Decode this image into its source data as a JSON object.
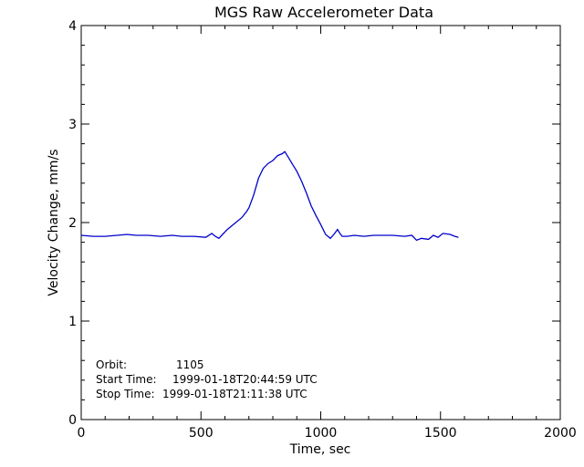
{
  "chart_data": {
    "type": "line",
    "title": "MGS Raw Accelerometer Data",
    "xlabel": "Time, sec",
    "ylabel": "Velocity Change, mm/s",
    "xlim": [
      0,
      2000
    ],
    "ylim": [
      0,
      4
    ],
    "x_ticks": [
      0,
      500,
      1000,
      1500,
      2000
    ],
    "y_ticks": [
      0,
      1,
      2,
      3,
      4
    ],
    "x_tick_labels": [
      "0",
      "500",
      "1000",
      "1500",
      "2000"
    ],
    "y_tick_labels": [
      "0",
      "1",
      "2",
      "3",
      "4"
    ],
    "grid": false,
    "line_color": "#0000cc",
    "series": [
      {
        "x": [
          0,
          50,
          100,
          150,
          190,
          230,
          280,
          330,
          380,
          420,
          470,
          520,
          545,
          560,
          575,
          590,
          610,
          640,
          670,
          690,
          700,
          720,
          740,
          760,
          780,
          800,
          820,
          840,
          850,
          865,
          880,
          900,
          920,
          940,
          960,
          980,
          1000,
          1020,
          1040,
          1055,
          1070,
          1080,
          1090,
          1110,
          1140,
          1180,
          1220,
          1260,
          1300,
          1350,
          1380,
          1400,
          1420,
          1450,
          1470,
          1490,
          1510,
          1540,
          1560,
          1575
        ],
        "y": [
          1.87,
          1.86,
          1.86,
          1.87,
          1.88,
          1.87,
          1.87,
          1.86,
          1.87,
          1.86,
          1.86,
          1.85,
          1.89,
          1.86,
          1.84,
          1.88,
          1.93,
          1.99,
          2.05,
          2.11,
          2.15,
          2.28,
          2.45,
          2.55,
          2.6,
          2.63,
          2.68,
          2.7,
          2.72,
          2.66,
          2.6,
          2.52,
          2.42,
          2.3,
          2.17,
          2.07,
          1.98,
          1.88,
          1.84,
          1.88,
          1.93,
          1.89,
          1.86,
          1.86,
          1.87,
          1.86,
          1.87,
          1.87,
          1.87,
          1.86,
          1.87,
          1.82,
          1.84,
          1.83,
          1.87,
          1.85,
          1.89,
          1.88,
          1.86,
          1.85
        ]
      }
    ],
    "annotations": [
      {
        "label": "Orbit:",
        "value": "1105"
      },
      {
        "label": "Start Time:",
        "value": "1999-01-18T20:44:59 UTC"
      },
      {
        "label": "Stop Time:",
        "value": "1999-01-18T21:11:38 UTC"
      }
    ]
  }
}
